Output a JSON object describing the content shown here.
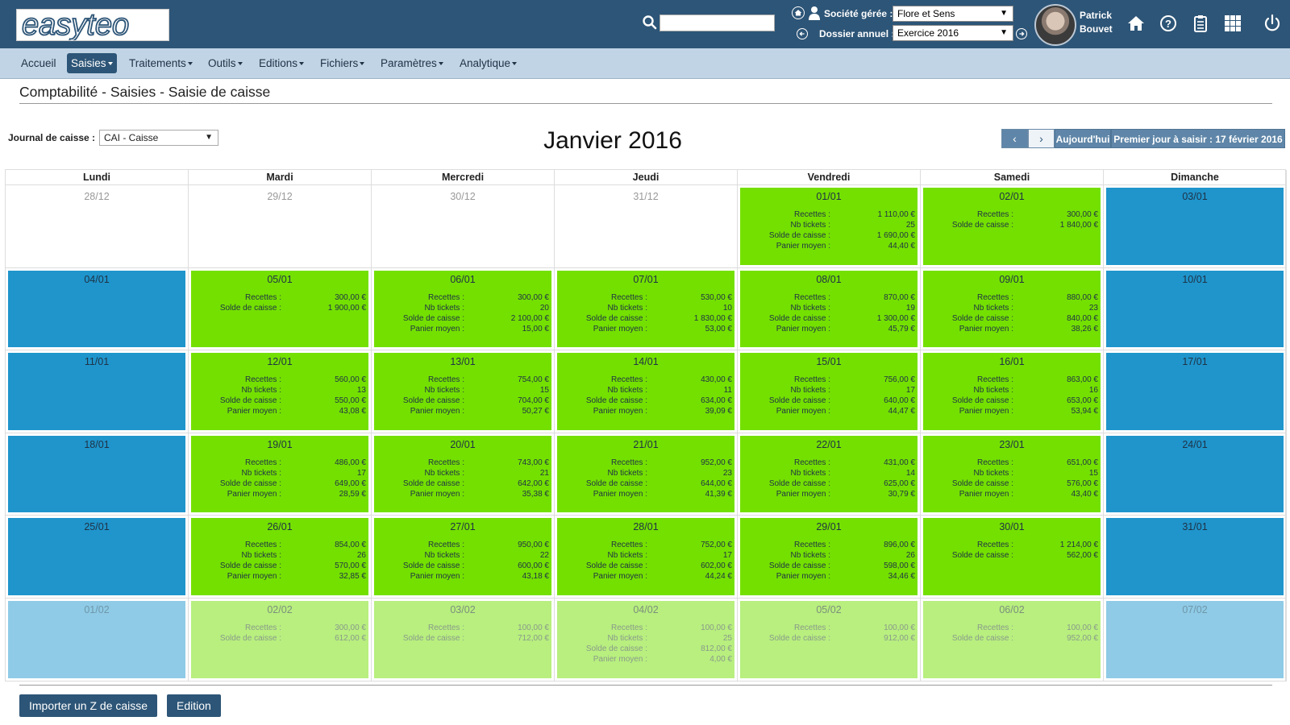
{
  "header": {
    "logo_text": "easyteo",
    "search_placeholder": "",
    "societe_label": "Société gérée :",
    "societe_value": "Flore et Sens",
    "dossier_label": "Dossier annuel :",
    "dossier_value": "Exercice 2016",
    "user_first": "Patrick",
    "user_last": "Bouvet"
  },
  "nav": [
    {
      "label": "Accueil",
      "dropdown": false,
      "active": false
    },
    {
      "label": "Saisies",
      "dropdown": true,
      "active": true
    },
    {
      "label": "Traitements",
      "dropdown": true,
      "active": false
    },
    {
      "label": "Outils",
      "dropdown": true,
      "active": false
    },
    {
      "label": "Editions",
      "dropdown": true,
      "active": false
    },
    {
      "label": "Fichiers",
      "dropdown": true,
      "active": false
    },
    {
      "label": "Paramètres",
      "dropdown": true,
      "active": false
    },
    {
      "label": "Analytique",
      "dropdown": true,
      "active": false
    }
  ],
  "page": {
    "title": "Comptabilité - Saisies - Saisie de caisse",
    "journal_label": "Journal de caisse :",
    "journal_value": "CAI - Caisse",
    "month_title": "Janvier 2016",
    "prev_label": "‹",
    "next_label": "›",
    "today_label": "Aujourd'hui",
    "first_day_label": "Premier jour à saisir : 17 février 2016"
  },
  "calendar": {
    "weekdays": [
      "Lundi",
      "Mardi",
      "Mercredi",
      "Jeudi",
      "Vendredi",
      "Samedi",
      "Dimanche"
    ],
    "labels": {
      "r": "Recettes :",
      "n": "Nb tickets :",
      "s": "Solde de caisse :",
      "p": "Panier moyen :"
    },
    "weeks": [
      [
        {
          "date": "28/12",
          "state": "empty"
        },
        {
          "date": "29/12",
          "state": "empty"
        },
        {
          "date": "30/12",
          "state": "empty"
        },
        {
          "date": "31/12",
          "state": "empty"
        },
        {
          "date": "01/01",
          "state": "green",
          "stats": {
            "r": "1 110,00 €",
            "n": "25",
            "s": "1 690,00 €",
            "p": "44,40 €"
          }
        },
        {
          "date": "02/01",
          "state": "green",
          "stats": {
            "r": "300,00 €",
            "s": "1 840,00 €"
          }
        },
        {
          "date": "03/01",
          "state": "blue"
        }
      ],
      [
        {
          "date": "04/01",
          "state": "blue"
        },
        {
          "date": "05/01",
          "state": "green",
          "stats": {
            "r": "300,00 €",
            "s": "1 900,00 €"
          }
        },
        {
          "date": "06/01",
          "state": "green",
          "stats": {
            "r": "300,00 €",
            "n": "20",
            "s": "2 100,00 €",
            "p": "15,00 €"
          }
        },
        {
          "date": "07/01",
          "state": "green",
          "stats": {
            "r": "530,00 €",
            "n": "10",
            "s": "1 830,00 €",
            "p": "53,00 €"
          }
        },
        {
          "date": "08/01",
          "state": "green",
          "stats": {
            "r": "870,00 €",
            "n": "19",
            "s": "1 300,00 €",
            "p": "45,79 €"
          }
        },
        {
          "date": "09/01",
          "state": "green",
          "stats": {
            "r": "880,00 €",
            "n": "23",
            "s": "840,00 €",
            "p": "38,26 €"
          }
        },
        {
          "date": "10/01",
          "state": "blue"
        }
      ],
      [
        {
          "date": "11/01",
          "state": "blue"
        },
        {
          "date": "12/01",
          "state": "green",
          "stats": {
            "r": "560,00 €",
            "n": "13",
            "s": "550,00 €",
            "p": "43,08 €"
          }
        },
        {
          "date": "13/01",
          "state": "green",
          "stats": {
            "r": "754,00 €",
            "n": "15",
            "s": "704,00 €",
            "p": "50,27 €"
          }
        },
        {
          "date": "14/01",
          "state": "green",
          "stats": {
            "r": "430,00 €",
            "n": "11",
            "s": "634,00 €",
            "p": "39,09 €"
          }
        },
        {
          "date": "15/01",
          "state": "green",
          "stats": {
            "r": "756,00 €",
            "n": "17",
            "s": "640,00 €",
            "p": "44,47 €"
          }
        },
        {
          "date": "16/01",
          "state": "green",
          "stats": {
            "r": "863,00 €",
            "n": "16",
            "s": "653,00 €",
            "p": "53,94 €"
          }
        },
        {
          "date": "17/01",
          "state": "blue"
        }
      ],
      [
        {
          "date": "18/01",
          "state": "blue"
        },
        {
          "date": "19/01",
          "state": "green",
          "stats": {
            "r": "486,00 €",
            "n": "17",
            "s": "649,00 €",
            "p": "28,59 €"
          }
        },
        {
          "date": "20/01",
          "state": "green",
          "stats": {
            "r": "743,00 €",
            "n": "21",
            "s": "642,00 €",
            "p": "35,38 €"
          }
        },
        {
          "date": "21/01",
          "state": "green",
          "stats": {
            "r": "952,00 €",
            "n": "23",
            "s": "644,00 €",
            "p": "41,39 €"
          }
        },
        {
          "date": "22/01",
          "state": "green",
          "stats": {
            "r": "431,00 €",
            "n": "14",
            "s": "625,00 €",
            "p": "30,79 €"
          }
        },
        {
          "date": "23/01",
          "state": "green",
          "stats": {
            "r": "651,00 €",
            "n": "15",
            "s": "576,00 €",
            "p": "43,40 €"
          }
        },
        {
          "date": "24/01",
          "state": "blue"
        }
      ],
      [
        {
          "date": "25/01",
          "state": "blue"
        },
        {
          "date": "26/01",
          "state": "green",
          "stats": {
            "r": "854,00 €",
            "n": "26",
            "s": "570,00 €",
            "p": "32,85 €"
          }
        },
        {
          "date": "27/01",
          "state": "green",
          "stats": {
            "r": "950,00 €",
            "n": "22",
            "s": "600,00 €",
            "p": "43,18 €"
          }
        },
        {
          "date": "28/01",
          "state": "green",
          "stats": {
            "r": "752,00 €",
            "n": "17",
            "s": "602,00 €",
            "p": "44,24 €"
          }
        },
        {
          "date": "29/01",
          "state": "green",
          "stats": {
            "r": "896,00 €",
            "n": "26",
            "s": "598,00 €",
            "p": "34,46 €"
          }
        },
        {
          "date": "30/01",
          "state": "green",
          "stats": {
            "r": "1 214,00 €",
            "s": "562,00 €"
          }
        },
        {
          "date": "31/01",
          "state": "blue"
        }
      ],
      [
        {
          "date": "01/02",
          "state": "lblue"
        },
        {
          "date": "02/02",
          "state": "lgreen",
          "stats": {
            "r": "300,00 €",
            "s": "612,00 €"
          }
        },
        {
          "date": "03/02",
          "state": "lgreen",
          "stats": {
            "r": "100,00 €",
            "s": "712,00 €"
          }
        },
        {
          "date": "04/02",
          "state": "lgreen",
          "stats": {
            "r": "100,00 €",
            "n": "25",
            "s": "812,00 €",
            "p": "4,00 €"
          }
        },
        {
          "date": "05/02",
          "state": "lgreen",
          "stats": {
            "r": "100,00 €",
            "s": "912,00 €"
          }
        },
        {
          "date": "06/02",
          "state": "lgreen",
          "stats": {
            "r": "100,00 €",
            "s": "952,00 €"
          }
        },
        {
          "date": "07/02",
          "state": "lblue"
        }
      ]
    ]
  },
  "footer": {
    "import_label": "Importer un Z de caisse",
    "edition_label": "Edition"
  },
  "icons": [
    "search-icon",
    "home-icon",
    "user-icon",
    "arrow-left-icon",
    "arrow-right-icon",
    "home-nav-icon",
    "help-icon",
    "clipboard-icon",
    "grid-icon",
    "power-icon"
  ],
  "colors": {
    "header": "#2d5577",
    "nav": "#c1d4e5",
    "day_green": "#74e000",
    "day_blue": "#1f95cc",
    "future_green": "#b8ef7f",
    "future_blue": "#8fcbe6"
  }
}
